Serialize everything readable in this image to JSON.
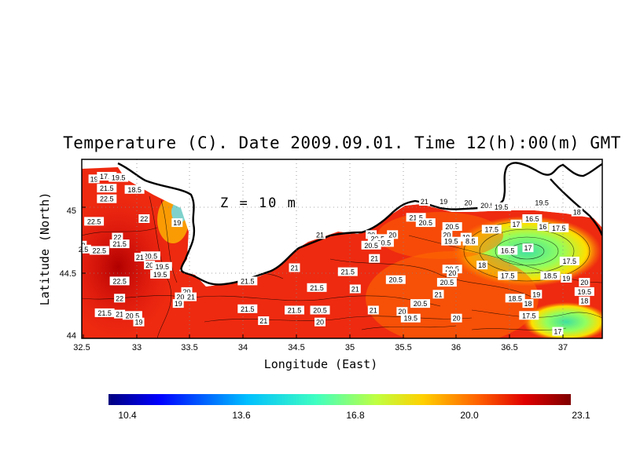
{
  "map": {
    "title": "Temperature (C). Date 2009.09.01. Time 12(h):00(m) GMT",
    "depth_label": "Z  =  10  m",
    "xlabel": "Longitude (East)",
    "ylabel": "Latitude (North)",
    "x_ticks": [
      "32.5",
      "33",
      "33.5",
      "34",
      "34.5",
      "35",
      "35.5",
      "36",
      "36.5",
      "37"
    ],
    "y_ticks": [
      "44",
      "44.5",
      "45"
    ],
    "lon_range": [
      32.5,
      37.3
    ],
    "lat_range": [
      44.0,
      45.35
    ]
  },
  "colorbar": {
    "ticks": [
      "10.4",
      "13.6",
      "16.8",
      "20.0",
      "23.1"
    ],
    "range": [
      10.4,
      23.1
    ],
    "colors": [
      "#00007f",
      "#0000ff",
      "#00bfff",
      "#40ffc0",
      "#c0ff40",
      "#ffd000",
      "#ff6000",
      "#e00000",
      "#7f0000"
    ]
  },
  "contour_labels": [
    {
      "lon": 32.6,
      "lat": 45.2,
      "text": "19"
    },
    {
      "lon": 32.72,
      "lat": 45.22,
      "text": "17.5"
    },
    {
      "lon": 32.83,
      "lat": 45.21,
      "text": "19.5"
    },
    {
      "lon": 32.72,
      "lat": 45.13,
      "text": "21.5"
    },
    {
      "lon": 32.98,
      "lat": 45.12,
      "text": "18.5"
    },
    {
      "lon": 32.72,
      "lat": 45.05,
      "text": "22.5"
    },
    {
      "lon": 32.6,
      "lat": 44.88,
      "text": "22.5"
    },
    {
      "lon": 33.07,
      "lat": 44.9,
      "text": "22"
    },
    {
      "lon": 33.38,
      "lat": 44.87,
      "text": "19"
    },
    {
      "lon": 32.82,
      "lat": 44.76,
      "text": "22"
    },
    {
      "lon": 32.5,
      "lat": 44.7,
      "text": "2"
    },
    {
      "lon": 32.84,
      "lat": 44.71,
      "text": "21.5"
    },
    {
      "lon": 32.65,
      "lat": 44.66,
      "text": "22.5"
    },
    {
      "lon": 32.5,
      "lat": 44.67,
      "text": "2.5"
    },
    {
      "lon": 33.13,
      "lat": 44.62,
      "text": "20.5"
    },
    {
      "lon": 33.03,
      "lat": 44.61,
      "text": "21"
    },
    {
      "lon": 33.12,
      "lat": 44.55,
      "text": "20"
    },
    {
      "lon": 33.24,
      "lat": 44.54,
      "text": "19.5"
    },
    {
      "lon": 33.22,
      "lat": 44.48,
      "text": "19.5"
    },
    {
      "lon": 32.84,
      "lat": 44.43,
      "text": "22.5"
    },
    {
      "lon": 32.84,
      "lat": 44.3,
      "text": "22"
    },
    {
      "lon": 33.47,
      "lat": 44.35,
      "text": "20"
    },
    {
      "lon": 33.41,
      "lat": 44.31,
      "text": "20"
    },
    {
      "lon": 33.51,
      "lat": 44.31,
      "text": "21"
    },
    {
      "lon": 33.39,
      "lat": 44.26,
      "text": "19"
    },
    {
      "lon": 32.7,
      "lat": 44.19,
      "text": "21.5"
    },
    {
      "lon": 32.84,
      "lat": 44.18,
      "text": "21"
    },
    {
      "lon": 32.96,
      "lat": 44.17,
      "text": "20.5"
    },
    {
      "lon": 33.02,
      "lat": 44.12,
      "text": "19"
    },
    {
      "lon": 34.04,
      "lat": 44.43,
      "text": "21.5"
    },
    {
      "lon": 34.48,
      "lat": 44.53,
      "text": "21"
    },
    {
      "lon": 34.98,
      "lat": 44.5,
      "text": "21.5"
    },
    {
      "lon": 34.69,
      "lat": 44.38,
      "text": "21.5"
    },
    {
      "lon": 35.05,
      "lat": 44.37,
      "text": "21"
    },
    {
      "lon": 34.04,
      "lat": 44.22,
      "text": "21.5"
    },
    {
      "lon": 34.48,
      "lat": 44.21,
      "text": "21.5"
    },
    {
      "lon": 34.72,
      "lat": 44.21,
      "text": "20.5"
    },
    {
      "lon": 34.19,
      "lat": 44.13,
      "text": "21"
    },
    {
      "lon": 34.72,
      "lat": 44.12,
      "text": "20"
    },
    {
      "lon": 35.22,
      "lat": 44.21,
      "text": "21"
    },
    {
      "lon": 34.72,
      "lat": 44.78,
      "text": "21"
    },
    {
      "lon": 35.2,
      "lat": 44.78,
      "text": "20"
    },
    {
      "lon": 35.26,
      "lat": 44.75,
      "text": "20.5"
    },
    {
      "lon": 35.32,
      "lat": 44.72,
      "text": "20.5"
    },
    {
      "lon": 35.4,
      "lat": 44.78,
      "text": "20"
    },
    {
      "lon": 35.2,
      "lat": 44.7,
      "text": "20.5"
    },
    {
      "lon": 35.23,
      "lat": 44.6,
      "text": "21"
    },
    {
      "lon": 35.62,
      "lat": 44.91,
      "text": "21.5"
    },
    {
      "lon": 35.71,
      "lat": 44.87,
      "text": "20.5"
    },
    {
      "lon": 35.7,
      "lat": 45.03,
      "text": "21"
    },
    {
      "lon": 35.88,
      "lat": 45.03,
      "text": "19"
    },
    {
      "lon": 36.11,
      "lat": 45.02,
      "text": "20"
    },
    {
      "lon": 36.29,
      "lat": 45.0,
      "text": "20.5"
    },
    {
      "lon": 36.42,
      "lat": 44.99,
      "text": "19.5"
    },
    {
      "lon": 35.96,
      "lat": 44.84,
      "text": "20.5"
    },
    {
      "lon": 35.91,
      "lat": 44.78,
      "text": "20"
    },
    {
      "lon": 36.09,
      "lat": 44.76,
      "text": "19"
    },
    {
      "lon": 35.95,
      "lat": 44.73,
      "text": "19.5"
    },
    {
      "lon": 36.13,
      "lat": 44.73,
      "text": "8.5"
    },
    {
      "lon": 36.33,
      "lat": 44.82,
      "text": "17.5"
    },
    {
      "lon": 36.56,
      "lat": 44.86,
      "text": "17"
    },
    {
      "lon": 36.71,
      "lat": 44.9,
      "text": "16.5"
    },
    {
      "lon": 36.81,
      "lat": 44.84,
      "text": "16"
    },
    {
      "lon": 36.96,
      "lat": 44.83,
      "text": "17.5"
    },
    {
      "lon": 36.8,
      "lat": 45.02,
      "text": "19.5"
    },
    {
      "lon": 37.13,
      "lat": 44.95,
      "text": "18"
    },
    {
      "lon": 36.48,
      "lat": 44.66,
      "text": "16.5"
    },
    {
      "lon": 36.67,
      "lat": 44.68,
      "text": "17"
    },
    {
      "lon": 36.24,
      "lat": 44.55,
      "text": "18"
    },
    {
      "lon": 35.96,
      "lat": 44.52,
      "text": "20.5"
    },
    {
      "lon": 35.96,
      "lat": 44.49,
      "text": "20"
    },
    {
      "lon": 36.48,
      "lat": 44.47,
      "text": "17.5"
    },
    {
      "lon": 35.91,
      "lat": 44.42,
      "text": "20.5"
    },
    {
      "lon": 35.43,
      "lat": 44.44,
      "text": "20.5"
    },
    {
      "lon": 35.83,
      "lat": 44.33,
      "text": "21"
    },
    {
      "lon": 35.66,
      "lat": 44.26,
      "text": "20.5"
    },
    {
      "lon": 35.49,
      "lat": 44.2,
      "text": "20"
    },
    {
      "lon": 35.57,
      "lat": 44.15,
      "text": "19.5"
    },
    {
      "lon": 36.0,
      "lat": 44.15,
      "text": "20"
    },
    {
      "lon": 36.75,
      "lat": 44.33,
      "text": "19"
    },
    {
      "lon": 36.55,
      "lat": 44.3,
      "text": "18.5"
    },
    {
      "lon": 36.67,
      "lat": 44.26,
      "text": "18"
    },
    {
      "lon": 36.68,
      "lat": 44.17,
      "text": "17.5"
    },
    {
      "lon": 36.88,
      "lat": 44.47,
      "text": "18.5"
    },
    {
      "lon": 37.03,
      "lat": 44.45,
      "text": "19"
    },
    {
      "lon": 37.06,
      "lat": 44.58,
      "text": "17.5"
    },
    {
      "lon": 37.2,
      "lat": 44.42,
      "text": "20"
    },
    {
      "lon": 37.2,
      "lat": 44.35,
      "text": "19.5"
    },
    {
      "lon": 37.2,
      "lat": 44.28,
      "text": "18"
    },
    {
      "lon": 36.95,
      "lat": 44.05,
      "text": "17"
    }
  ]
}
